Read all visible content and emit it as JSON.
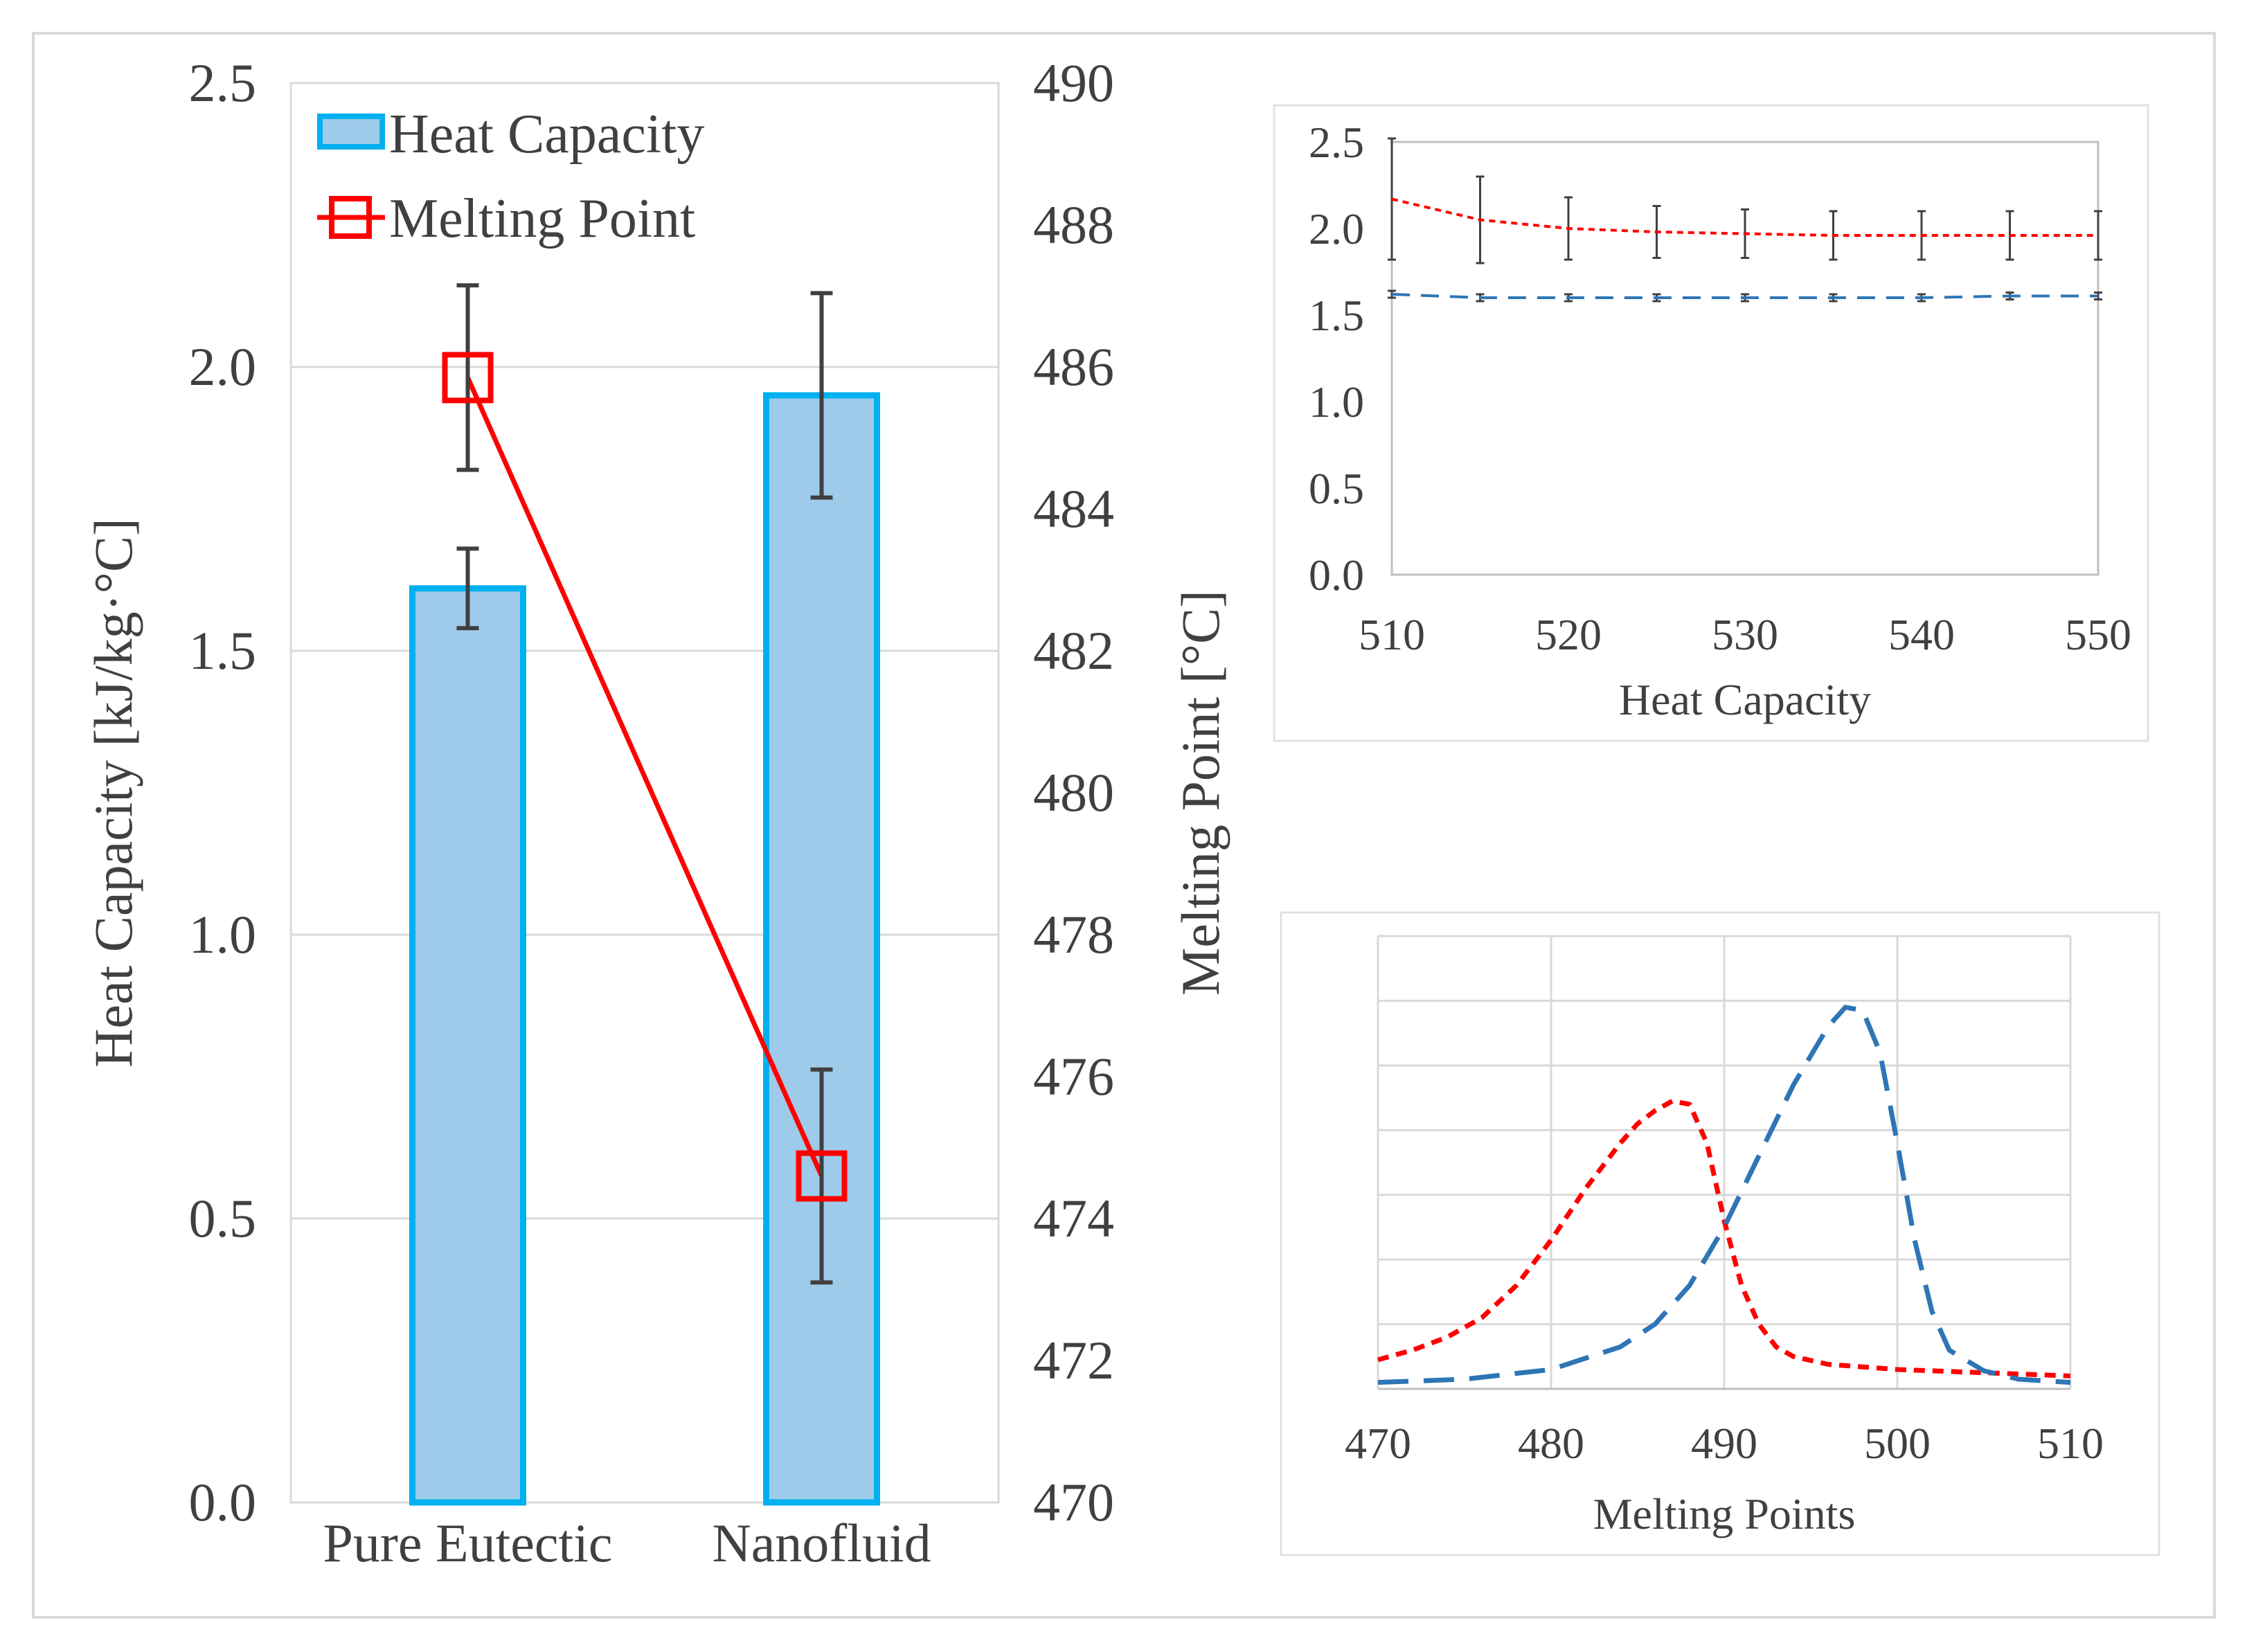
{
  "chart_data": [
    {
      "type": "bar",
      "categories": [
        "Pure Eutectic",
        "Nanofluid"
      ],
      "series": [
        {
          "name": "Heat Capacity",
          "axis": "left",
          "values": [
            1.61,
            1.95
          ],
          "error": [
            0.07,
            0.18
          ],
          "color": "#9ecbea",
          "edge_color": "#00b0f0"
        },
        {
          "name": "Melting Point",
          "type": "line",
          "axis": "right",
          "values": [
            485.85,
            474.6
          ],
          "error": [
            1.3,
            1.5
          ],
          "color": "#ff0000",
          "marker": "square"
        }
      ],
      "ylabel": "Heat Capacity [kJ/kg·°C]",
      "ylim": [
        0,
        2.5
      ],
      "yticks": [
        "0.0",
        "0.5",
        "1.0",
        "1.5",
        "2.0",
        "2.5"
      ],
      "y2label": "Melting Point [°C]",
      "y2lim": [
        470,
        490
      ],
      "y2ticks": [
        "470",
        "472",
        "474",
        "476",
        "478",
        "480",
        "482",
        "484",
        "486",
        "488",
        "490"
      ],
      "legend_position": "top-left",
      "error_bar_color": "#404040",
      "grid": true
    },
    {
      "type": "line",
      "xlabel": "Heat Capacity",
      "xlim": [
        510,
        550
      ],
      "xticks": [
        "510",
        "520",
        "530",
        "540",
        "550"
      ],
      "ylim": [
        0,
        2.5
      ],
      "yticks": [
        "0.0",
        "0.5",
        "1.0",
        "1.5",
        "2.0",
        "2.5"
      ],
      "series": [
        {
          "name": "red-dotted",
          "color": "#ff0000",
          "style": "dotted",
          "x": [
            510,
            515,
            520,
            525,
            530,
            535,
            540,
            545,
            550
          ],
          "values": [
            2.17,
            2.05,
            2.0,
            1.98,
            1.97,
            1.96,
            1.96,
            1.96,
            1.96
          ],
          "error": [
            0.35,
            0.25,
            0.18,
            0.15,
            0.14,
            0.14,
            0.14,
            0.14,
            0.14
          ]
        },
        {
          "name": "blue-dashed",
          "color": "#2e75b6",
          "style": "dashed",
          "x": [
            510,
            515,
            520,
            525,
            530,
            535,
            540,
            545,
            550
          ],
          "values": [
            1.62,
            1.6,
            1.6,
            1.6,
            1.6,
            1.6,
            1.6,
            1.61,
            1.61
          ],
          "error": [
            0.02,
            0.02,
            0.02,
            0.02,
            0.02,
            0.02,
            0.02,
            0.02,
            0.02
          ]
        }
      ],
      "grid": false
    },
    {
      "type": "line",
      "xlabel": "Melting Points",
      "xlim": [
        470,
        510
      ],
      "xticks": [
        "470",
        "480",
        "490",
        "500",
        "510"
      ],
      "ylim": [
        0,
        7
      ],
      "series": [
        {
          "name": "red-dotted",
          "color": "#ff0000",
          "style": "dotted",
          "x": [
            470,
            472,
            474,
            476,
            478,
            480,
            482,
            484,
            485,
            486,
            487,
            488,
            489,
            490,
            491,
            492,
            493,
            494,
            496,
            500,
            505,
            510
          ],
          "values": [
            0.45,
            0.6,
            0.8,
            1.1,
            1.6,
            2.3,
            3.1,
            3.8,
            4.1,
            4.3,
            4.45,
            4.4,
            3.8,
            2.6,
            1.6,
            1.0,
            0.65,
            0.5,
            0.38,
            0.3,
            0.25,
            0.2
          ]
        },
        {
          "name": "blue-dashed",
          "color": "#2e75b6",
          "style": "dashed",
          "x": [
            470,
            475,
            480,
            484,
            486,
            488,
            490,
            492,
            494,
            496,
            497,
            498,
            499,
            500,
            501,
            502,
            503,
            505,
            507,
            510
          ],
          "values": [
            0.1,
            0.15,
            0.3,
            0.65,
            1.0,
            1.6,
            2.5,
            3.6,
            4.7,
            5.6,
            5.9,
            5.85,
            5.2,
            3.8,
            2.3,
            1.2,
            0.6,
            0.28,
            0.15,
            0.1
          ]
        }
      ],
      "grid": true
    }
  ]
}
